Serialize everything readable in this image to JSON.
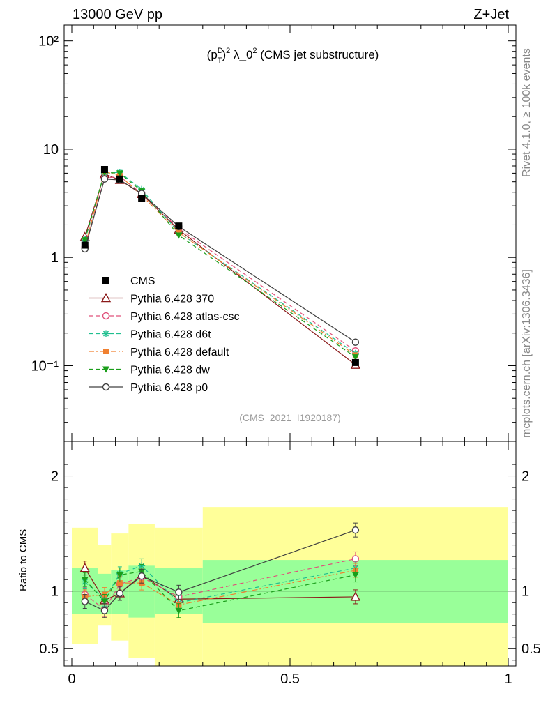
{
  "header": {
    "left": "13000 GeV pp",
    "right": "Z+Jet"
  },
  "side_labels": {
    "rivet": "Rivet 4.1.0, ≥ 100k events",
    "mcplots": "mcplots.cern.ch [arXiv:1306.3436]"
  },
  "chart_data": {
    "type": "line",
    "title": "(pTD)² λ_0² (CMS jet substructure)",
    "title_parts": {
      "open": "(p",
      "sup": "D",
      "sub": "T",
      "close": ")",
      "sq": "2",
      "lambda": " λ_0",
      "sq2": "2",
      "rest": " (CMS jet substructure)"
    },
    "analysis_id": "(CMS_2021_I1920187)",
    "xlim": [
      0,
      1
    ],
    "ylim_main": [
      0.02,
      140
    ],
    "y_scale_main": "log",
    "ylim_ratio": [
      0.35,
      2.3
    ],
    "ylabel_ratio": "Ratio to CMS",
    "x_tick_labels": [
      "0",
      "0.5",
      "1"
    ],
    "y_tick_labels_main": [
      "10²",
      "10",
      "1",
      "10⁻¹"
    ],
    "y_tick_labels_ratio": [
      "0.5",
      "1",
      "2"
    ],
    "bins": [
      {
        "lo": 0.0,
        "hi": 0.06
      },
      {
        "lo": 0.06,
        "hi": 0.09
      },
      {
        "lo": 0.09,
        "hi": 0.13
      },
      {
        "lo": 0.13,
        "hi": 0.19
      },
      {
        "lo": 0.19,
        "hi": 0.3
      },
      {
        "lo": 0.3,
        "hi": 1.0
      }
    ],
    "x": [
      0.03,
      0.075,
      0.11,
      0.16,
      0.245,
      0.65
    ],
    "data": {
      "name": "CMS",
      "values": [
        1.3,
        6.5,
        5.3,
        3.5,
        1.95,
        0.107
      ],
      "band_stat_lo": [
        0.8,
        0.8,
        0.8,
        0.77,
        0.8,
        0.72
      ],
      "band_stat_hi": [
        1.2,
        1.15,
        1.18,
        1.22,
        1.2,
        1.27
      ],
      "band_total_lo": [
        0.54,
        0.7,
        0.57,
        0.42,
        0.35,
        0.35
      ],
      "band_total_hi": [
        1.55,
        1.4,
        1.5,
        1.58,
        1.55,
        1.73
      ]
    },
    "series": [
      {
        "name": "Pythia 6.428 370",
        "color": "#8b1a1a",
        "dash": "",
        "marker": "triangle-open",
        "values": [
          1.55,
          5.9,
          5.2,
          3.85,
          1.8,
          0.102
        ],
        "ratio": [
          1.2,
          0.92,
          0.98,
          1.14,
          0.93,
          0.95
        ]
      },
      {
        "name": "Pythia 6.428 atlas-csc",
        "color": "#e0507a",
        "dash": "6,4",
        "marker": "circle-open",
        "values": [
          1.25,
          5.4,
          5.6,
          3.9,
          1.85,
          0.137
        ],
        "ratio": [
          0.97,
          0.84,
          1.06,
          1.12,
          0.95,
          1.28
        ]
      },
      {
        "name": "Pythia 6.428 d6t",
        "color": "#1fbf8f",
        "dash": "6,4",
        "marker": "asterisk",
        "values": [
          1.45,
          6.0,
          6.1,
          4.25,
          1.7,
          0.13
        ],
        "ratio": [
          1.08,
          0.93,
          1.15,
          1.22,
          0.9,
          1.2
        ]
      },
      {
        "name": "Pythia 6.428 default",
        "color": "#f08030",
        "dash": "8,3,2,3",
        "marker": "square",
        "values": [
          1.25,
          6.2,
          5.7,
          3.75,
          1.7,
          0.125
        ],
        "ratio": [
          0.95,
          0.97,
          1.07,
          1.07,
          0.88,
          1.18
        ]
      },
      {
        "name": "Pythia 6.428 dw",
        "color": "#1a9e1a",
        "dash": "6,4",
        "marker": "triangle-down",
        "values": [
          1.45,
          6.1,
          6.0,
          4.1,
          1.6,
          0.12
        ],
        "ratio": [
          1.1,
          0.91,
          1.14,
          1.17,
          0.83,
          1.14
        ]
      },
      {
        "name": "Pythia 6.428 p0",
        "color": "#404040",
        "dash": "",
        "marker": "circle-open",
        "values": [
          1.2,
          5.3,
          5.2,
          3.9,
          1.93,
          0.165
        ],
        "ratio": [
          0.91,
          0.83,
          0.98,
          1.13,
          0.99,
          1.53
        ]
      }
    ]
  }
}
